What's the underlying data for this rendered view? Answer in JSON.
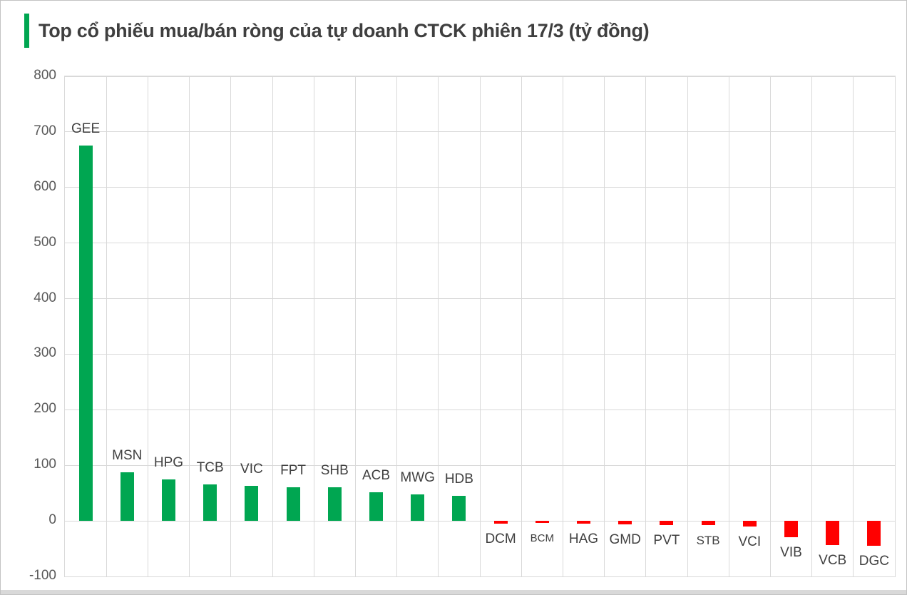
{
  "frame": {
    "background": "#ffffff",
    "border_color": "#c3c3c3",
    "bottom_strip_color": "#d9d9d9"
  },
  "title": {
    "text": "Top cổ phiếu mua/bán ròng của tự doanh CTCK phiên 17/3 (tỷ đồng)",
    "color": "#3f3f3f",
    "accent_color": "#00A651"
  },
  "chart_data": {
    "type": "bar",
    "title": "Top cổ phiếu mua/bán ròng của tự doanh CTCK phiên 17/3 (tỷ đồng)",
    "unit": "tỷ đồng",
    "categories": [
      "GEE",
      "MSN",
      "HPG",
      "TCB",
      "VIC",
      "FPT",
      "SHB",
      "ACB",
      "MWG",
      "HDB",
      "DCM",
      "BCM",
      "HAG",
      "GMD",
      "PVT",
      "STB",
      "VCI",
      "VIB",
      "VCB",
      "DGC"
    ],
    "values": [
      675,
      88,
      74,
      65,
      63,
      61,
      60,
      52,
      48,
      45,
      -5,
      -4,
      -5,
      -6,
      -8,
      -7,
      -10,
      -29,
      -43,
      -45
    ],
    "label_font_sizes": [
      19,
      19,
      19,
      19,
      19,
      19,
      19,
      19,
      19,
      19,
      19,
      15,
      19,
      19,
      19,
      17,
      19,
      19,
      19,
      19
    ],
    "positive_color": "#00A651",
    "negative_color": "#FF0000",
    "ylim": [
      -100,
      800
    ],
    "yticks": [
      800,
      700,
      600,
      500,
      400,
      300,
      200,
      100,
      0,
      -100
    ],
    "grid": true,
    "gridline_color": "#d9d9d9",
    "axis_label_color": "#595959",
    "category_label_color": "#404040",
    "legend": "none",
    "xlabel": "",
    "ylabel": ""
  }
}
